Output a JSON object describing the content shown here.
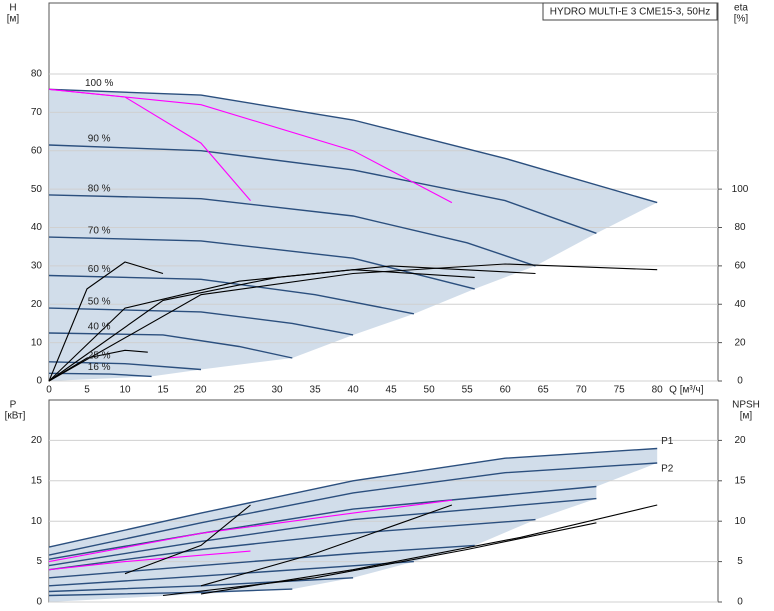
{
  "chart_data": [
    {
      "type": "line",
      "title": "HYDRO MULTI-E 3 CME15-3, 50Hz",
      "ylabel": "H",
      "yunit": "[м]",
      "y2label": "eta",
      "y2unit": "[%]",
      "xlabel": "Q [м³/ч]",
      "xlim": [
        0,
        88
      ],
      "xticks": [
        0,
        5,
        10,
        15,
        20,
        25,
        30,
        35,
        40,
        45,
        50,
        55,
        60,
        65,
        70,
        75,
        80
      ],
      "ylim": [
        0,
        98.5
      ],
      "yticks": [
        0,
        10,
        20,
        30,
        40,
        50,
        60,
        70,
        80
      ],
      "y2lim": [
        0,
        197
      ],
      "y2ticks": [
        0,
        20,
        40,
        60,
        80,
        100
      ],
      "grid": true,
      "series": [
        {
          "name": "100 %",
          "color": "#2b4f7e",
          "x": [
            0,
            20,
            40,
            60,
            80
          ],
          "values": [
            76,
            74.5,
            68,
            58,
            46.5
          ]
        },
        {
          "name": "90 %",
          "color": "#2b4f7e",
          "x": [
            0,
            20,
            40,
            60,
            72
          ],
          "values": [
            61.5,
            60,
            55,
            47,
            38.5
          ]
        },
        {
          "name": "80 %",
          "color": "#2b4f7e",
          "x": [
            0,
            20,
            40,
            55,
            64
          ],
          "values": [
            48.5,
            47.5,
            43,
            36,
            30
          ]
        },
        {
          "name": "70 %",
          "color": "#2b4f7e",
          "x": [
            0,
            20,
            40,
            56
          ],
          "values": [
            37.5,
            36.5,
            32,
            24
          ]
        },
        {
          "name": "60 %",
          "color": "#2b4f7e",
          "x": [
            0,
            20,
            35,
            48
          ],
          "values": [
            27.5,
            26.5,
            22.5,
            17.5
          ]
        },
        {
          "name": "50 %",
          "color": "#2b4f7e",
          "x": [
            0,
            20,
            32,
            40
          ],
          "values": [
            19,
            18,
            15,
            12
          ]
        },
        {
          "name": "40 %",
          "color": "#2b4f7e",
          "x": [
            0,
            15,
            25,
            32
          ],
          "values": [
            12.5,
            12,
            9,
            6
          ]
        },
        {
          "name": "25 %",
          "color": "#2b4f7e",
          "x": [
            0,
            10,
            20
          ],
          "values": [
            5,
            4.5,
            3
          ]
        },
        {
          "name": "16 %",
          "color": "#2b4f7e",
          "x": [
            0,
            8,
            13.5
          ],
          "values": [
            2,
            1.8,
            1.2
          ]
        },
        {
          "color": "#ff00ff",
          "x": [
            0,
            10,
            20,
            26.5
          ],
          "values": [
            76,
            74,
            62,
            47
          ]
        },
        {
          "color": "#ff00ff",
          "x": [
            0,
            20,
            40,
            53
          ],
          "values": [
            76,
            72,
            60,
            46.5
          ]
        },
        {
          "color": "#000000",
          "axis": "y2",
          "x": [
            0,
            20,
            40,
            60,
            80
          ],
          "values": [
            0,
            45,
            56,
            61,
            58
          ]
        },
        {
          "color": "#000000",
          "axis": "y2",
          "x": [
            0,
            15,
            30,
            45,
            64
          ],
          "values": [
            0,
            42,
            54,
            60,
            56
          ]
        },
        {
          "color": "#000000",
          "axis": "y2",
          "x": [
            0,
            10,
            25,
            40,
            56
          ],
          "values": [
            0,
            38,
            52,
            58,
            54
          ]
        },
        {
          "color": "#000000",
          "axis": "y2",
          "x": [
            0,
            5,
            10,
            15
          ],
          "values": [
            0,
            48,
            62,
            56
          ]
        },
        {
          "color": "#000000",
          "axis": "y2",
          "x": [
            0,
            5,
            10,
            13
          ],
          "values": [
            0,
            12,
            16,
            15
          ]
        }
      ]
    },
    {
      "type": "line",
      "ylabel": "P",
      "yunit": "[кВт]",
      "y2label": "NPSH",
      "y2unit": "[м]",
      "xlim": [
        0,
        88
      ],
      "ylim": [
        0,
        25
      ],
      "yticks": [
        0,
        5,
        10,
        15,
        20
      ],
      "y2lim": [
        0,
        25
      ],
      "y2ticks": [
        0,
        5,
        10,
        15,
        20
      ],
      "grid": true,
      "series": [
        {
          "name": "P1",
          "color": "#2b4f7e",
          "x": [
            0,
            20,
            40,
            60,
            80
          ],
          "values": [
            6.8,
            11,
            15,
            17.8,
            19
          ]
        },
        {
          "name": "P2",
          "color": "#2b4f7e",
          "x": [
            0,
            20,
            40,
            60,
            80
          ],
          "values": [
            5.8,
            9.8,
            13.5,
            16,
            17.2
          ]
        },
        {
          "color": "#2b4f7e",
          "x": [
            0,
            20,
            40,
            72
          ],
          "values": [
            5.3,
            8.5,
            11.5,
            14.3
          ]
        },
        {
          "color": "#2b4f7e",
          "x": [
            0,
            20,
            40,
            72
          ],
          "values": [
            4.5,
            7.5,
            10.2,
            12.8
          ]
        },
        {
          "color": "#2b4f7e",
          "x": [
            0,
            20,
            40,
            64
          ],
          "values": [
            4,
            6.5,
            8.5,
            10.2
          ]
        },
        {
          "color": "#2b4f7e",
          "x": [
            0,
            20,
            40,
            56
          ],
          "values": [
            3,
            4.5,
            6,
            7
          ]
        },
        {
          "color": "#2b4f7e",
          "x": [
            0,
            20,
            48
          ],
          "values": [
            2,
            3.2,
            5
          ]
        },
        {
          "color": "#2b4f7e",
          "x": [
            0,
            20,
            40
          ],
          "values": [
            1.3,
            2,
            3
          ]
        },
        {
          "color": "#2b4f7e",
          "x": [
            0,
            20,
            32
          ],
          "values": [
            0.8,
            1.2,
            1.6
          ]
        },
        {
          "color": "#ff00ff",
          "x": [
            0,
            10,
            26.5
          ],
          "values": [
            4,
            5,
            6.3
          ]
        },
        {
          "color": "#ff00ff",
          "x": [
            0,
            20,
            40,
            53
          ],
          "values": [
            5,
            8.5,
            11,
            12.6
          ]
        },
        {
          "color": "#000000",
          "axis": "y2",
          "x": [
            20,
            40,
            62,
            80
          ],
          "values": [
            1,
            4,
            8,
            12
          ]
        },
        {
          "color": "#000000",
          "axis": "y2",
          "x": [
            15,
            35,
            55,
            72
          ],
          "values": [
            0.8,
            3,
            6.5,
            9.8
          ]
        },
        {
          "color": "#000000",
          "axis": "y2",
          "x": [
            10,
            20,
            26.5
          ],
          "values": [
            3.5,
            7,
            12
          ]
        },
        {
          "color": "#000000",
          "axis": "y2",
          "x": [
            20,
            35,
            53
          ],
          "values": [
            2,
            6,
            12
          ]
        }
      ]
    }
  ]
}
